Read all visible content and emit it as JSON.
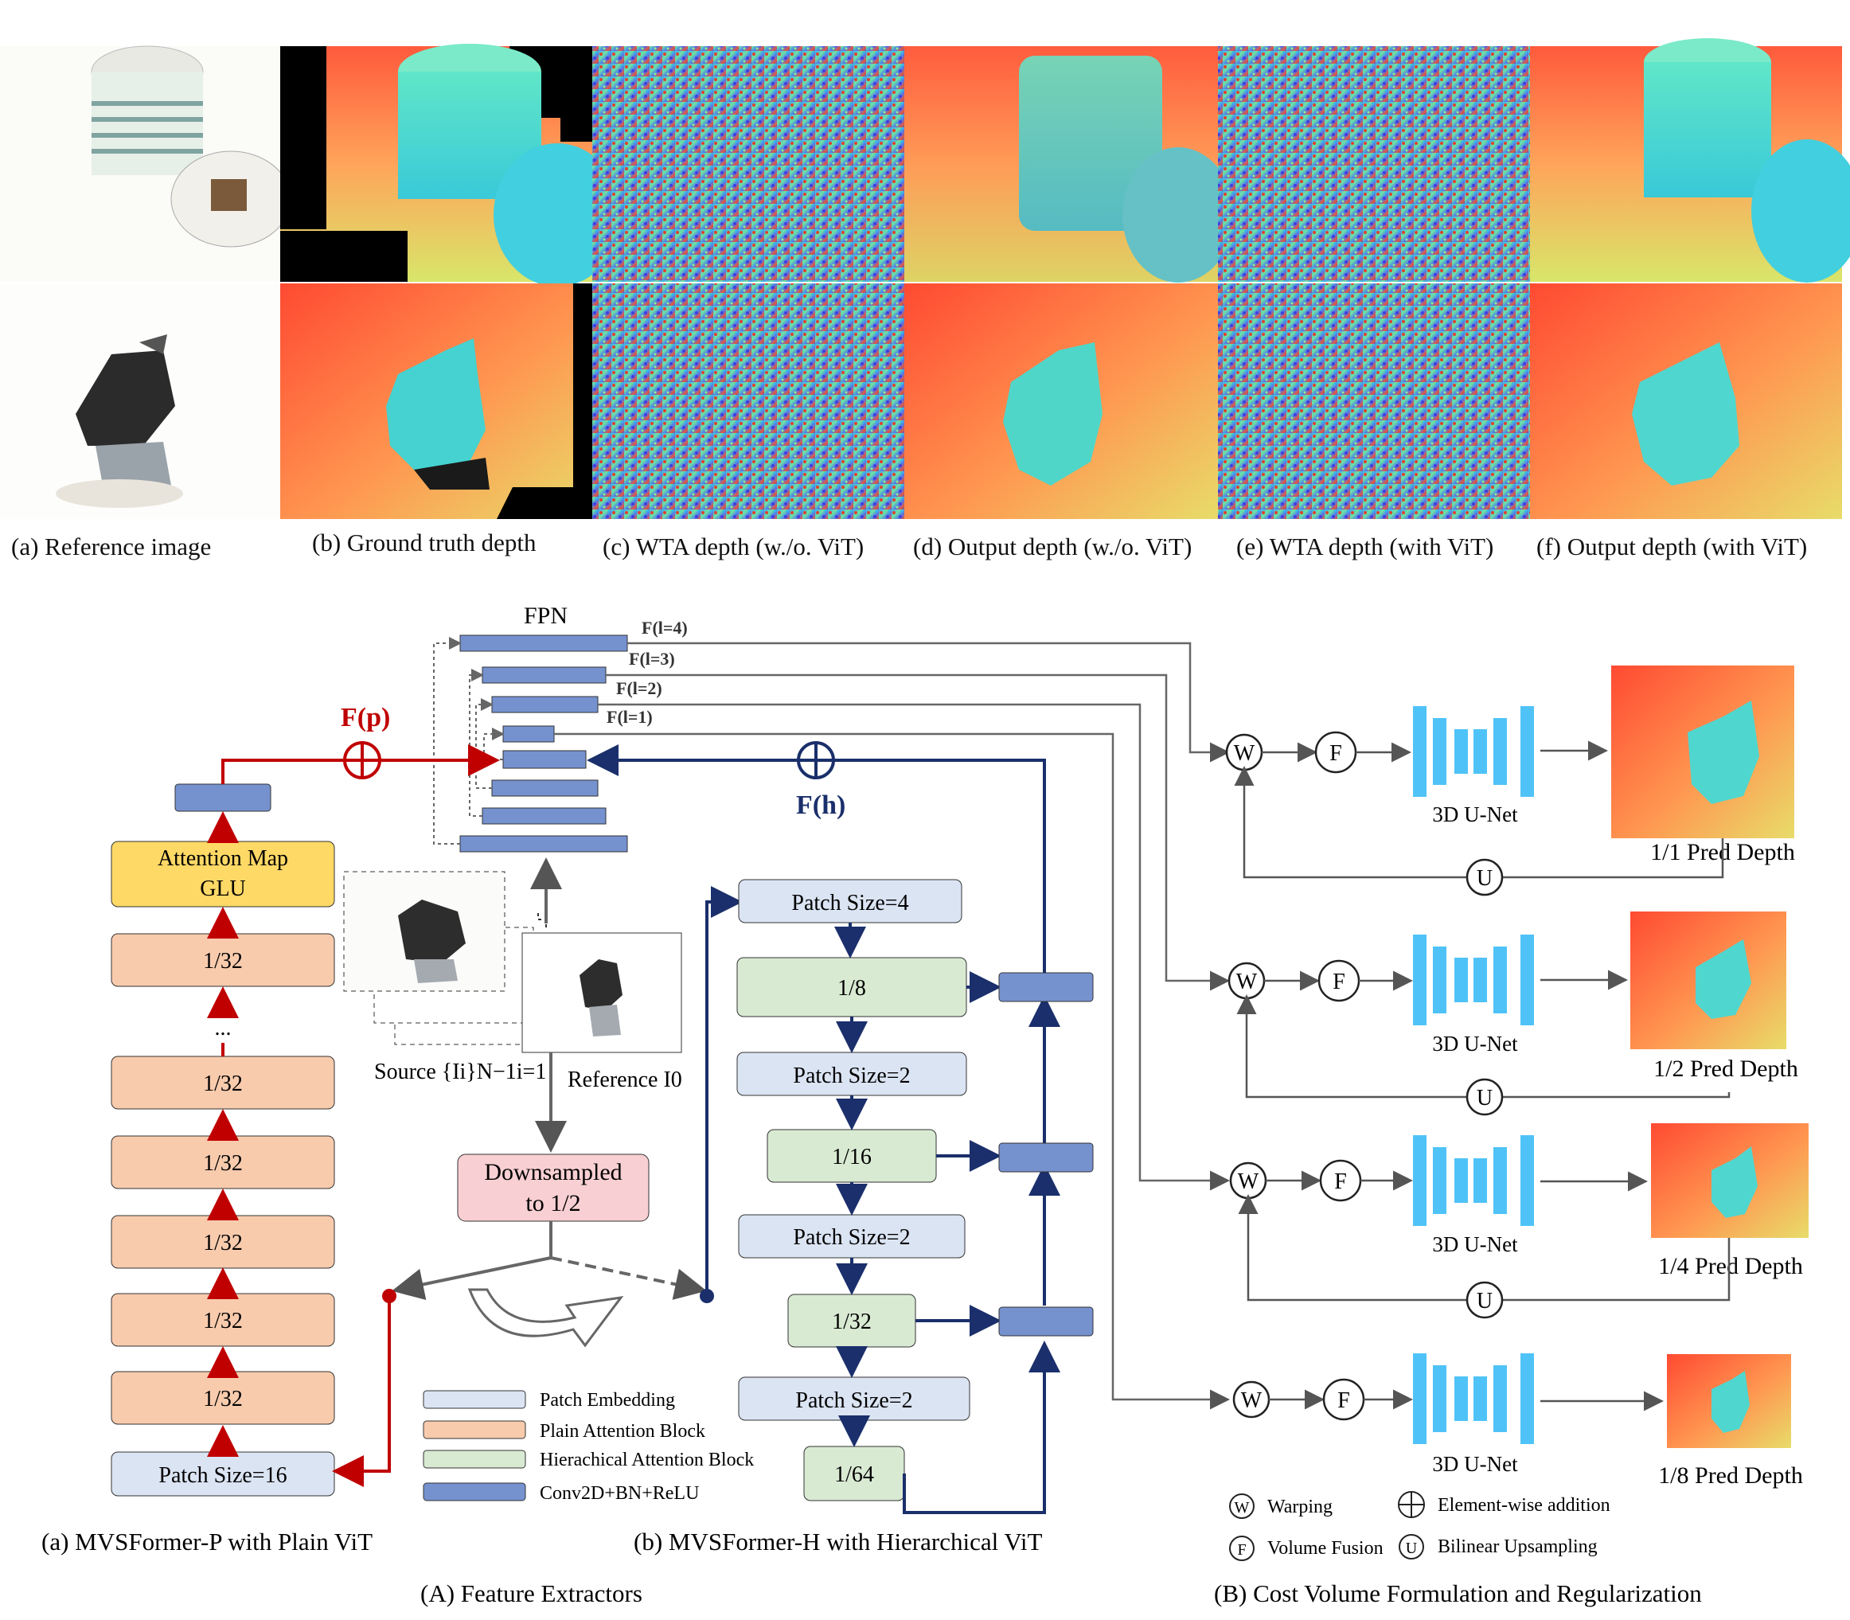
{
  "captions": {
    "a": "(a) Reference image",
    "b": "(b) Ground truth depth",
    "c": "(c) WTA depth (w./o. ViT)",
    "d": "(d) Output depth (w./o. ViT)",
    "e": "(e) WTA depth (with ViT)",
    "f": "(f) Output depth (with ViT)"
  },
  "fpn_label": "FPN",
  "fpn_levels": [
    "F(l=4)",
    "F(l=3)",
    "F(l=2)",
    "F(l=1)"
  ],
  "fp_label": "F(p)",
  "fh_label": "F(h)",
  "attention_map": [
    "Attention Map",
    "GLU"
  ],
  "plain_blocks": [
    "1/32",
    "1/32",
    "1/32",
    "1/32",
    "1/32",
    "1/32"
  ],
  "ellipsis": "...",
  "patch16": "Patch Size=16",
  "source_label": "Source {Ii}N−1i=1",
  "reference_label": "Reference I0",
  "downsample": [
    "Downsampled",
    "to 1/2"
  ],
  "hier": {
    "patch4": "Patch Size=4",
    "b1": "1/8",
    "patch2a": "Patch Size=2",
    "b2": "1/16",
    "patch2b": "Patch Size=2",
    "b3": "1/32",
    "patch2c": "Patch Size=2",
    "b4": "1/64"
  },
  "legend": {
    "patch_embedding": "Patch Embedding",
    "plain_attention": "Plain Attention Block",
    "hier_attention": "Hierachical Attention Block",
    "conv": "Conv2D+BN+ReLU"
  },
  "sub_a": "(a) MVSFormer-P with Plain ViT",
  "sub_b": "(b) MVSFormer-H with Hierarchical ViT",
  "section_A": "(A) Feature Extractors",
  "section_B": "(B) Cost Volume Formulation and Regularization",
  "W": "W",
  "F": "F",
  "U": "U",
  "unet": "3D U-Net",
  "preds": [
    "1/1 Pred Depth",
    "1/2 Pred Depth",
    "1/4 Pred Depth",
    "1/8 Pred Depth"
  ],
  "legendB": {
    "warping": "Warping",
    "addition": "Element-wise addition",
    "fusion": "Volume Fusion",
    "upsampling": "Bilinear Upsampling"
  },
  "colors": {
    "red": "#c00000",
    "navy": "#1a2f6b",
    "patch_embed": "#dbe4f3",
    "plain_block": "#f8cbad",
    "hier_block": "#d9ead3",
    "conv": "#7592cf",
    "glu": "#ffd966",
    "downsample": "#f8cfd2",
    "unet": "#4fc3f7"
  }
}
